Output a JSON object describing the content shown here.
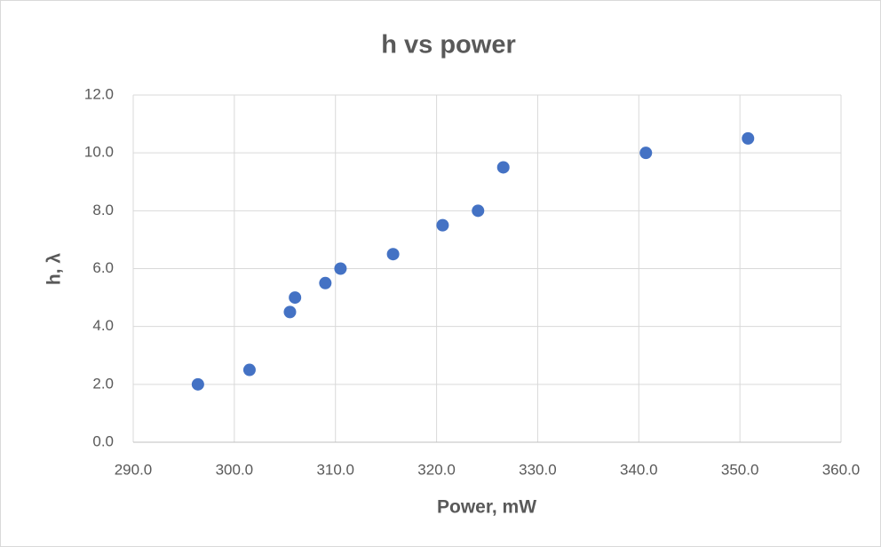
{
  "chart_data": {
    "type": "scatter",
    "title": "h vs power",
    "x_label": "Power, mW",
    "y_label": "h, λ",
    "series": [
      {
        "color": "#4472c4",
        "x": [
          296.4,
          301.5,
          305.5,
          306.0,
          309.0,
          310.5,
          315.7,
          320.6,
          324.1,
          326.6,
          340.7,
          350.8
        ],
        "values": [
          2.0,
          2.5,
          4.5,
          5.0,
          5.5,
          6.0,
          6.5,
          7.5,
          8.0,
          9.5,
          10.0,
          10.5
        ]
      }
    ],
    "xlim": [
      290,
      360
    ],
    "xticks": [
      {
        "value": 290,
        "label": "290.0"
      },
      {
        "value": 300,
        "label": "300.0"
      },
      {
        "value": 310,
        "label": "310.0"
      },
      {
        "value": 320,
        "label": "320.0"
      },
      {
        "value": 330,
        "label": "330.0"
      },
      {
        "value": 340,
        "label": "340.0"
      },
      {
        "value": 350,
        "label": "350.0"
      },
      {
        "value": 360,
        "label": "360.0"
      }
    ],
    "ylim": [
      0,
      12
    ],
    "yticks": [
      {
        "value": 0,
        "label": "0.0"
      },
      {
        "value": 2,
        "label": "2.0"
      },
      {
        "value": 4,
        "label": "4.0"
      },
      {
        "value": 6,
        "label": "6.0"
      },
      {
        "value": 8,
        "label": "8.0"
      },
      {
        "value": 10,
        "label": "10.0"
      },
      {
        "value": 12,
        "label": "12.0"
      }
    ],
    "grid": true
  }
}
